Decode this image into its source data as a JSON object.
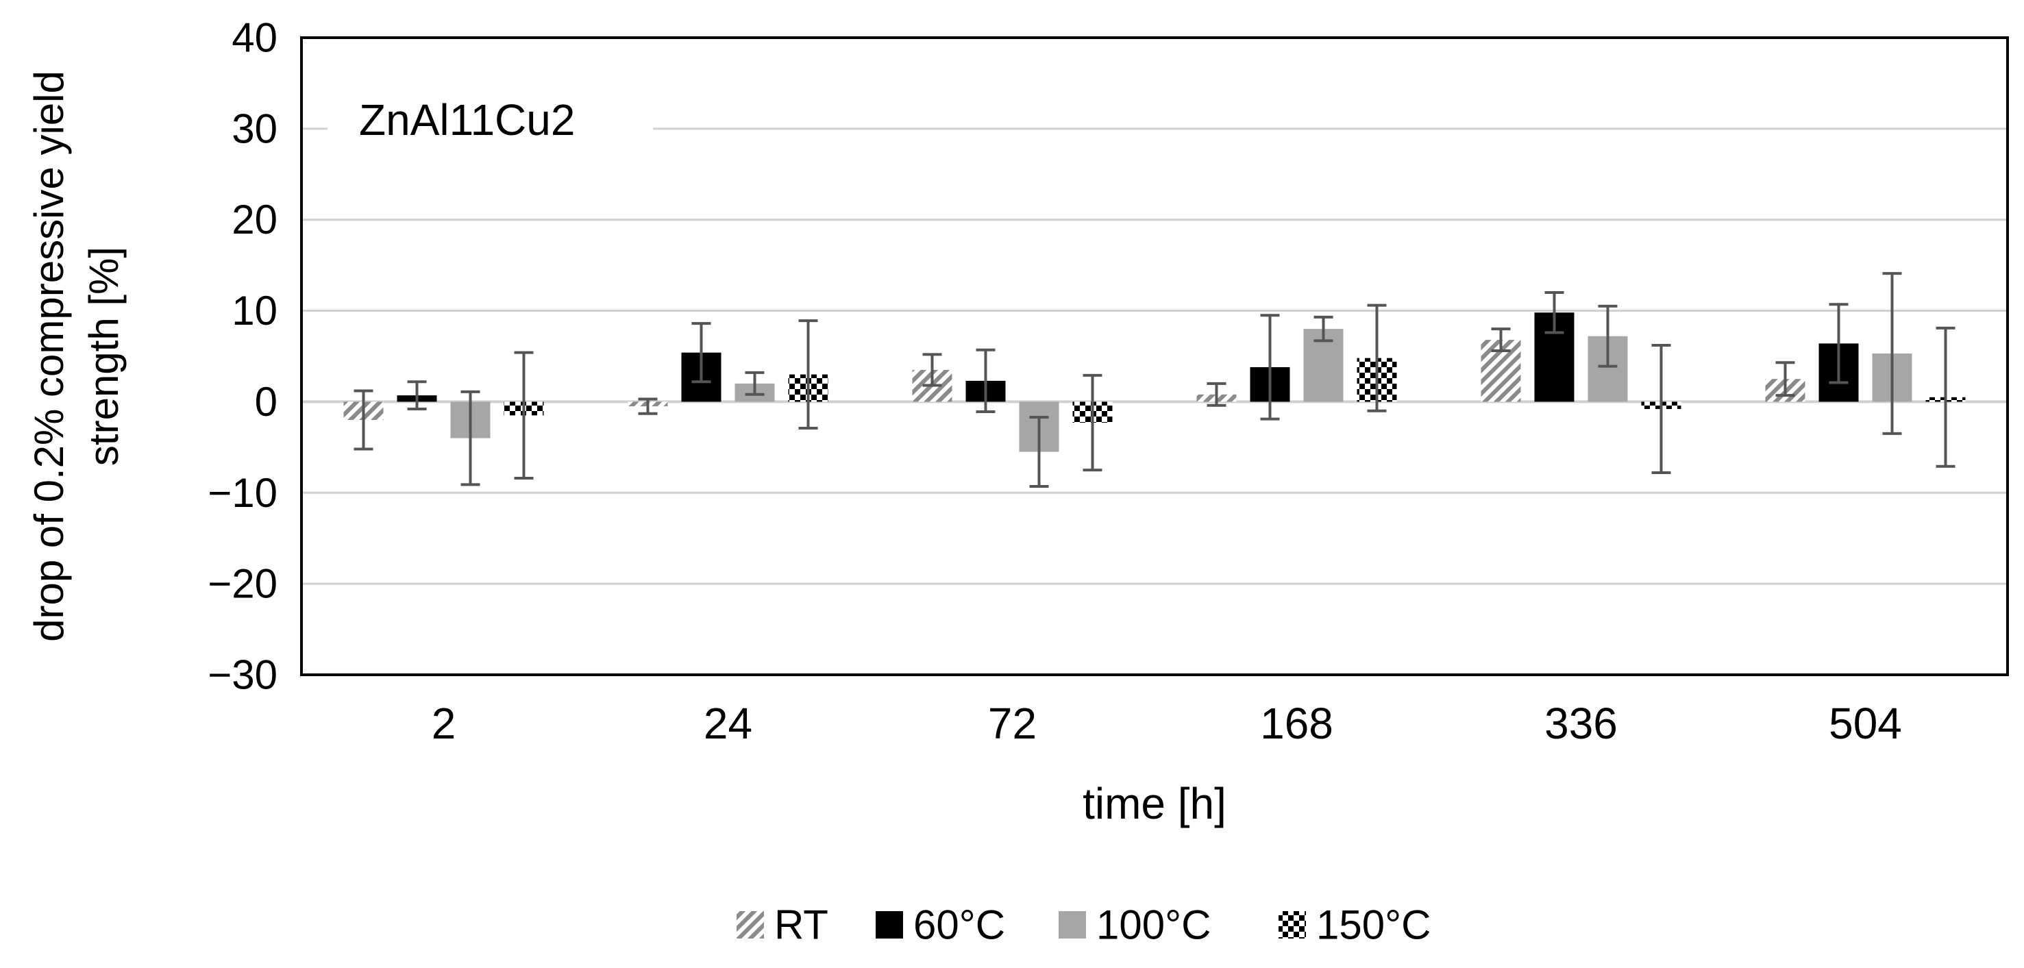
{
  "chart_data": {
    "type": "bar",
    "title": "",
    "annotation": "ZnAl11Cu2",
    "xlabel": "time [h]",
    "ylabel_lines": [
      "drop of 0.2% compressive yield",
      "strength [%]"
    ],
    "ylim": [
      -30,
      40
    ],
    "yticks": [
      -30,
      -20,
      -10,
      0,
      10,
      20,
      30,
      40
    ],
    "ytick_labels": [
      "−30",
      "−20",
      "−10",
      "0",
      "10",
      "20",
      "30",
      "40"
    ],
    "grid": true,
    "legend_position": "bottom-center",
    "categories": [
      "2",
      "24",
      "72",
      "168",
      "336",
      "504"
    ],
    "series": [
      {
        "name": "RT",
        "pattern": "diagonal-hatch",
        "values": [
          -2.0,
          -0.5,
          3.5,
          0.8,
          6.8,
          2.5
        ],
        "errors": [
          3.2,
          0.8,
          1.7,
          1.2,
          1.2,
          1.8
        ]
      },
      {
        "name": "60°C",
        "pattern": "solid-black",
        "values": [
          0.7,
          5.4,
          2.3,
          3.8,
          9.8,
          6.4
        ],
        "errors": [
          1.5,
          3.2,
          3.4,
          5.7,
          2.2,
          4.3
        ]
      },
      {
        "name": "100°C",
        "pattern": "solid-gray",
        "values": [
          -4.0,
          2.0,
          -5.5,
          8.0,
          7.2,
          5.3
        ],
        "errors": [
          5.1,
          1.2,
          3.8,
          1.3,
          3.3,
          8.8
        ]
      },
      {
        "name": "150°C",
        "pattern": "checker",
        "values": [
          -1.5,
          3.0,
          -2.3,
          4.8,
          -0.8,
          0.5
        ],
        "errors": [
          6.9,
          5.9,
          5.2,
          5.8,
          7.0,
          7.6
        ]
      }
    ],
    "colors": {
      "axis": "#000000",
      "grid": "#d0d0d0",
      "error_bar": "#555555",
      "hatch": "#8a8a8a",
      "black": "#000000",
      "gray": "#a6a6a6"
    }
  }
}
